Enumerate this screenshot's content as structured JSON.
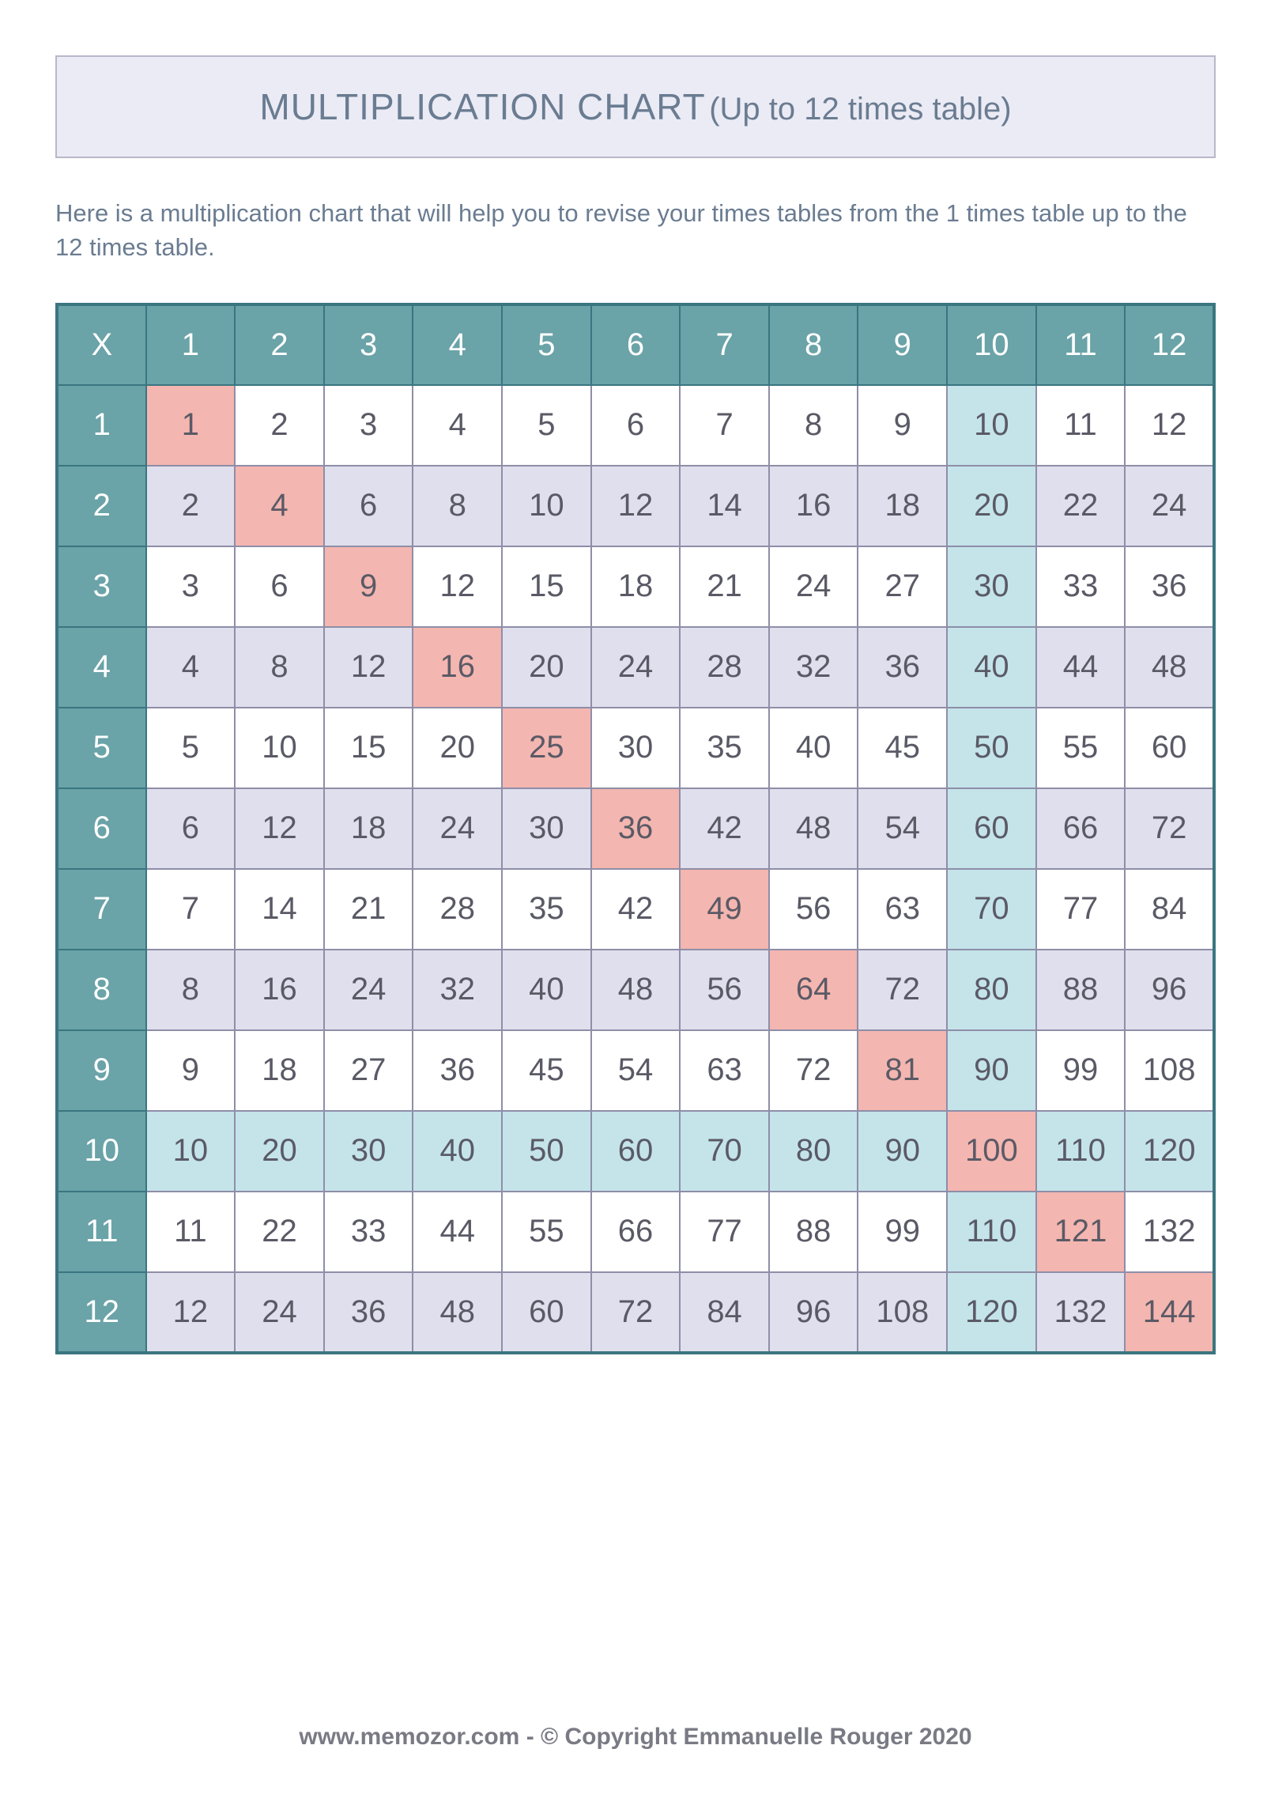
{
  "title": {
    "main": "MULTIPLICATION CHART",
    "sub": "(Up to 12 times table)",
    "box_bg": "#ebebf5",
    "box_border": "#b8b8c9",
    "text_color": "#6a7c91",
    "main_fontsize": 46,
    "sub_fontsize": 40
  },
  "description": {
    "text": "Here is a multiplication chart that will help you to revise your times tables from the 1 times table up to the 12 times table.",
    "color": "#6a7c91",
    "fontsize": 31
  },
  "chart": {
    "type": "table",
    "size": 12,
    "corner_label": "X",
    "col_headers": [
      "1",
      "2",
      "3",
      "4",
      "5",
      "6",
      "7",
      "8",
      "9",
      "10",
      "11",
      "12"
    ],
    "row_headers": [
      "1",
      "2",
      "3",
      "4",
      "5",
      "6",
      "7",
      "8",
      "9",
      "10",
      "11",
      "12"
    ],
    "rows": [
      [
        1,
        2,
        3,
        4,
        5,
        6,
        7,
        8,
        9,
        10,
        11,
        12
      ],
      [
        2,
        4,
        6,
        8,
        10,
        12,
        14,
        16,
        18,
        20,
        22,
        24
      ],
      [
        3,
        6,
        9,
        12,
        15,
        18,
        21,
        24,
        27,
        30,
        33,
        36
      ],
      [
        4,
        8,
        12,
        16,
        20,
        24,
        28,
        32,
        36,
        40,
        44,
        48
      ],
      [
        5,
        10,
        15,
        20,
        25,
        30,
        35,
        40,
        45,
        50,
        55,
        60
      ],
      [
        6,
        12,
        18,
        24,
        30,
        36,
        42,
        48,
        54,
        60,
        66,
        72
      ],
      [
        7,
        14,
        21,
        28,
        35,
        42,
        49,
        56,
        63,
        70,
        77,
        84
      ],
      [
        8,
        16,
        24,
        32,
        40,
        48,
        56,
        64,
        72,
        80,
        88,
        96
      ],
      [
        9,
        18,
        27,
        36,
        45,
        54,
        63,
        72,
        81,
        90,
        99,
        108
      ],
      [
        10,
        20,
        30,
        40,
        50,
        60,
        70,
        80,
        90,
        100,
        110,
        120
      ],
      [
        11,
        22,
        33,
        44,
        55,
        66,
        77,
        88,
        99,
        110,
        121,
        132
      ],
      [
        12,
        24,
        36,
        48,
        60,
        72,
        84,
        96,
        108,
        120,
        132,
        144
      ]
    ],
    "colors": {
      "header_bg": "#6aa3a8",
      "header_text": "#ffffff",
      "odd_row_bg": "#ffffff",
      "even_row_bg": "#e0dfed",
      "diagonal_bg": "#f4b6b0",
      "col10_bg": "#c4e4ea",
      "row10_bg": "#c4e4ea",
      "cell_text": "#5a5a66",
      "grid_border": "#8e8ea8",
      "outer_border": "#3a7680",
      "header_fontsize": 40,
      "cell_fontsize": 40
    }
  },
  "footer": {
    "text": "www.memozor.com - © Copyright Emmanuelle Rouger 2020",
    "color": "#7a7a85",
    "fontsize": 30
  }
}
